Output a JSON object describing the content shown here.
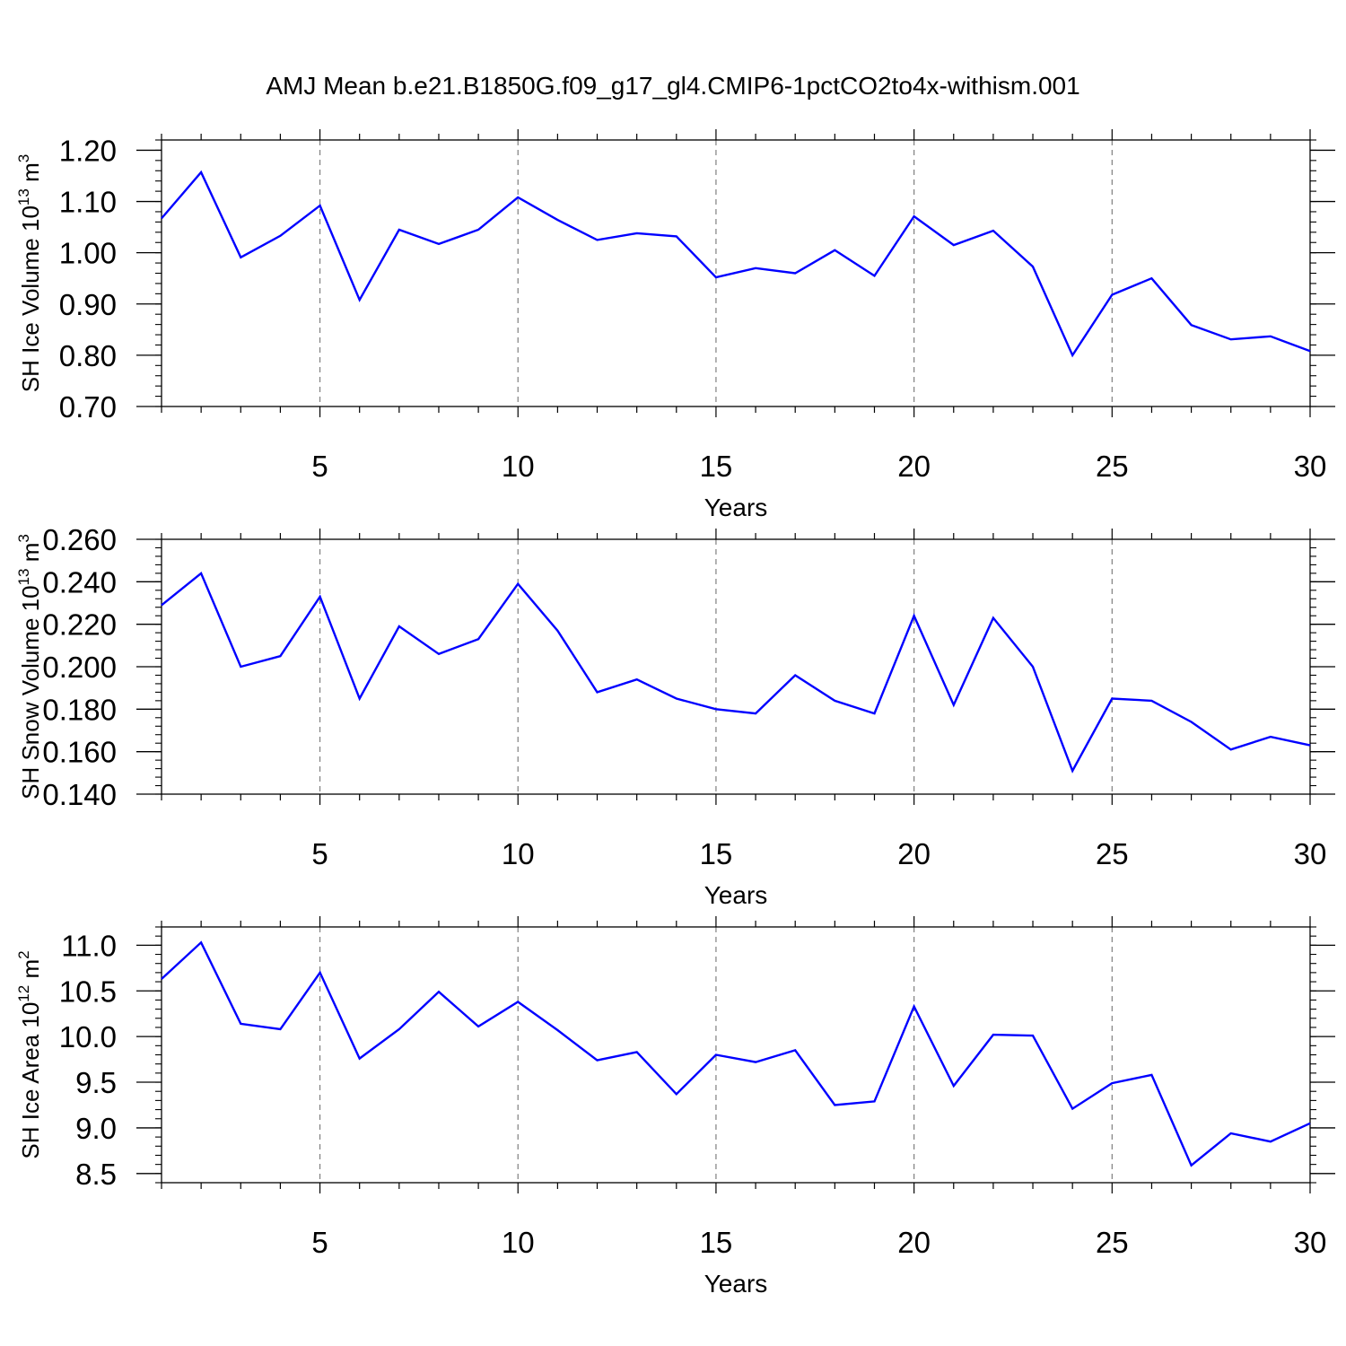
{
  "title": "AMJ Mean b.e21.B1850G.f09_g17_gl4.CMIP6-1pctCO2to4x-withism.001",
  "colors": {
    "series": "#0000ff",
    "axis": "#000000",
    "grid": "#7f7f7f"
  },
  "chart_data": [
    {
      "type": "line",
      "title": "",
      "xlabel": "Years",
      "ylabel": "SH Ice Volume 10",
      "ylabel_exp": "13",
      "ylabel_unit": " m",
      "ylabel_unit_exp": "3",
      "xlim": [
        1,
        30
      ],
      "ylim": [
        0.7,
        1.22
      ],
      "xticks": [
        5,
        10,
        15,
        20,
        25,
        30
      ],
      "yticks": [
        "0.70",
        "0.80",
        "0.90",
        "1.00",
        "1.10",
        "1.20"
      ],
      "grid": "vertical dashed at major x ticks",
      "x": [
        1,
        2,
        3,
        4,
        5,
        6,
        7,
        8,
        9,
        10,
        11,
        12,
        13,
        14,
        15,
        16,
        17,
        18,
        19,
        20,
        21,
        22,
        23,
        24,
        25,
        26,
        27,
        28,
        29,
        30
      ],
      "series": [
        {
          "values": [
            1.067,
            1.157,
            0.991,
            1.033,
            1.092,
            0.908,
            1.045,
            1.017,
            1.045,
            1.108,
            1.064,
            1.025,
            1.038,
            1.032,
            0.952,
            0.97,
            0.96,
            1.005,
            0.955,
            1.071,
            1.015,
            1.043,
            0.973,
            0.8,
            0.918,
            0.95,
            0.859,
            0.831,
            0.837,
            0.808
          ]
        }
      ]
    },
    {
      "type": "line",
      "title": "",
      "xlabel": "Years",
      "ylabel": "SH Snow Volume 10",
      "ylabel_exp": "13",
      "ylabel_unit": " m",
      "ylabel_unit_exp": "3",
      "xlim": [
        1,
        30
      ],
      "ylim": [
        0.14,
        0.26
      ],
      "xticks": [
        5,
        10,
        15,
        20,
        25,
        30
      ],
      "yticks": [
        "0.140",
        "0.160",
        "0.180",
        "0.200",
        "0.220",
        "0.240",
        "0.260"
      ],
      "grid": "vertical dashed at major x ticks",
      "x": [
        1,
        2,
        3,
        4,
        5,
        6,
        7,
        8,
        9,
        10,
        11,
        12,
        13,
        14,
        15,
        16,
        17,
        18,
        19,
        20,
        21,
        22,
        23,
        24,
        25,
        26,
        27,
        28,
        29,
        30
      ],
      "series": [
        {
          "values": [
            0.229,
            0.244,
            0.2,
            0.205,
            0.233,
            0.185,
            0.219,
            0.206,
            0.213,
            0.239,
            0.217,
            0.188,
            0.194,
            0.185,
            0.18,
            0.178,
            0.196,
            0.184,
            0.178,
            0.224,
            0.182,
            0.223,
            0.2,
            0.151,
            0.185,
            0.184,
            0.174,
            0.161,
            0.167,
            0.163
          ]
        }
      ]
    },
    {
      "type": "line",
      "title": "",
      "xlabel": "Years",
      "ylabel": "SH Ice Area 10",
      "ylabel_exp": "12",
      "ylabel_unit": " m",
      "ylabel_unit_exp": "2",
      "xlim": [
        1,
        30
      ],
      "ylim": [
        8.4,
        11.2
      ],
      "xticks": [
        5,
        10,
        15,
        20,
        25,
        30
      ],
      "yticks": [
        "8.5",
        "9.0",
        "9.5",
        "10.0",
        "10.5",
        "11.0"
      ],
      "grid": "vertical dashed at major x ticks",
      "x": [
        1,
        2,
        3,
        4,
        5,
        6,
        7,
        8,
        9,
        10,
        11,
        12,
        13,
        14,
        15,
        16,
        17,
        18,
        19,
        20,
        21,
        22,
        23,
        24,
        25,
        26,
        27,
        28,
        29,
        30
      ],
      "series": [
        {
          "values": [
            10.63,
            11.03,
            10.14,
            10.08,
            10.7,
            9.76,
            10.08,
            10.49,
            10.11,
            10.38,
            10.07,
            9.74,
            9.83,
            9.37,
            9.8,
            9.72,
            9.85,
            9.25,
            9.29,
            10.33,
            9.46,
            10.02,
            10.01,
            9.21,
            9.49,
            9.58,
            8.59,
            8.94,
            8.85,
            9.05
          ]
        }
      ]
    }
  ]
}
